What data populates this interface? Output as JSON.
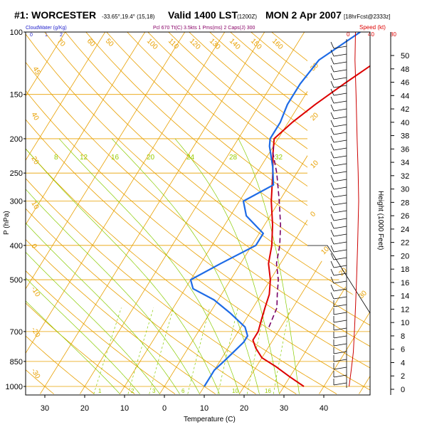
{
  "title": {
    "station": "#1: WORCESTER",
    "coords": "-33.65°,19.4° (15,18)",
    "valid": "Valid 1400 LST",
    "utc": "(1200Z)",
    "date": "MON 2 Apr 2007",
    "run": "[18hrFcst@2333z]"
  },
  "subheaders": {
    "cloudwater": "CloudWater (g/Kg)",
    "cloud_ticks": [
      "0",
      "1",
      "2"
    ],
    "parcel_info": "Pcl 670 Tt(C) 3.5kts 1 Pms(ms) 2 Caps(J) 300",
    "speed_label": "Speed (kt)",
    "speed_ticks": [
      "0",
      "40",
      "80"
    ]
  },
  "colors": {
    "isotherm": "#e8a000",
    "dry_adiabat": "#e8a000",
    "moist_adiabat": "#88cc00",
    "mixing_ratio": "#88cc00",
    "temperature": "#dd0000",
    "dewpoint": "#1e6be6",
    "parcel": "#770066",
    "speed": "#cc0000"
  },
  "chart_data": {
    "type": "line",
    "title": "#1: WORCESTER Valid 1400 LST (1200Z) MON 2 Apr 2007",
    "xlabel": "Temperature (C)",
    "ylabel": "P (hPa)",
    "y2label": "Height (1000 Feet)",
    "x_ticks": [
      "30",
      "20",
      "10",
      "0",
      "10",
      "20",
      "30",
      "40"
    ],
    "x_tick_values": [
      -30,
      -20,
      -10,
      0,
      10,
      20,
      30,
      40
    ],
    "y_ticks": [
      "100",
      "150",
      "200",
      "250",
      "300",
      "400",
      "500",
      "700",
      "850",
      "1000"
    ],
    "y_tick_values": [
      100,
      150,
      200,
      250,
      300,
      400,
      500,
      700,
      850,
      1000
    ],
    "height_ticks": [
      "0",
      "2",
      "4",
      "6",
      "8",
      "10",
      "12",
      "14",
      "16",
      "18",
      "20",
      "22",
      "24",
      "26",
      "28",
      "30",
      "32",
      "34",
      "36",
      "38",
      "40",
      "42",
      "44",
      "46",
      "48",
      "50"
    ],
    "ylim": [
      1000,
      100
    ],
    "xlim": [
      -35,
      51
    ],
    "isotherm_labels": [
      "-50",
      "-40",
      "-30",
      "-20",
      "-10",
      "0",
      "10",
      "20",
      "30"
    ],
    "dry_adiabat_labels": [
      "70",
      "60",
      "50",
      "100",
      "110",
      "120",
      "130",
      "140",
      "150",
      "160"
    ],
    "dry_adiabat_left_labels": [
      "45",
      "40",
      "20",
      "10",
      "0",
      "-10",
      "-20",
      "-30"
    ],
    "mixing_ratio_labels": [
      "8",
      "12",
      "16",
      "20",
      "24",
      "28",
      "32"
    ],
    "mixing_ratio_bottom_labels": [
      "1",
      "2",
      "3",
      "6",
      "10",
      "16"
    ],
    "series": [
      {
        "name": "Temperature",
        "points": [
          [
            35,
            1000
          ],
          [
            30,
            940
          ],
          [
            25,
            880
          ],
          [
            20,
            830
          ],
          [
            17,
            780
          ],
          [
            15,
            740
          ],
          [
            15,
            700
          ],
          [
            14,
            650
          ],
          [
            13,
            600
          ],
          [
            12,
            550
          ],
          [
            10,
            500
          ],
          [
            7,
            450
          ],
          [
            5,
            400
          ],
          [
            2,
            350
          ],
          [
            -2,
            300
          ],
          [
            -6,
            250
          ],
          [
            -9,
            220
          ],
          [
            -11,
            200
          ],
          [
            -9,
            180
          ],
          [
            -6,
            160
          ],
          [
            -2,
            140
          ],
          [
            3,
            120
          ],
          [
            7,
            100
          ]
        ]
      },
      {
        "name": "Dewpoint",
        "points": [
          [
            10,
            1000
          ],
          [
            10,
            950
          ],
          [
            10,
            900
          ],
          [
            11,
            850
          ],
          [
            12,
            800
          ],
          [
            13,
            750
          ],
          [
            13,
            720
          ],
          [
            11,
            680
          ],
          [
            5,
            620
          ],
          [
            -1,
            570
          ],
          [
            -8,
            530
          ],
          [
            -10,
            500
          ],
          [
            -5,
            450
          ],
          [
            1,
            400
          ],
          [
            1,
            370
          ],
          [
            -6,
            330
          ],
          [
            -9,
            300
          ],
          [
            -4,
            270
          ],
          [
            -7,
            240
          ],
          [
            -11,
            210
          ],
          [
            -12,
            200
          ],
          [
            -12,
            180
          ],
          [
            -13,
            160
          ],
          [
            -13,
            140
          ],
          [
            -12,
            120
          ],
          [
            -6,
            100
          ]
        ]
      },
      {
        "name": "Parcel",
        "points": [
          [
            17,
            680
          ],
          [
            16,
            600
          ],
          [
            14,
            550
          ],
          [
            12,
            500
          ],
          [
            9,
            450
          ],
          [
            7,
            400
          ],
          [
            4,
            350
          ],
          [
            0,
            300
          ],
          [
            -5,
            250
          ],
          [
            -9,
            220
          ],
          [
            -10,
            210
          ]
        ]
      }
    ],
    "wind_speed": [
      [
        2,
        1000
      ],
      [
        6,
        900
      ],
      [
        10,
        800
      ],
      [
        12,
        700
      ],
      [
        14,
        600
      ],
      [
        16,
        500
      ],
      [
        18,
        400
      ],
      [
        20,
        300
      ],
      [
        19,
        250
      ],
      [
        17,
        200
      ],
      [
        15,
        150
      ],
      [
        13,
        120
      ],
      [
        14,
        100
      ]
    ],
    "grid": true,
    "legend": "none"
  }
}
